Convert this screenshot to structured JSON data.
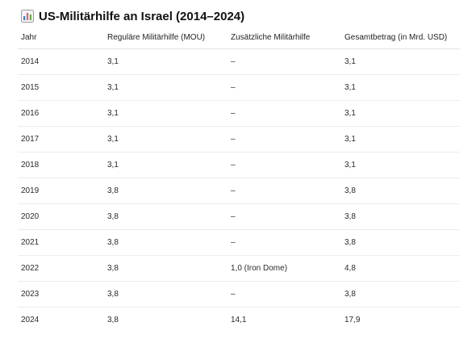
{
  "title": "US-Militärhilfe an Israel (2014–2024)",
  "title_icon": "bar-chart-icon",
  "table": {
    "headers": [
      "Jahr",
      "Reguläre Militärhilfe (MOU)",
      "Zusätzliche Militärhilfe",
      "Gesamtbetrag (in Mrd. USD)"
    ],
    "rows": [
      [
        "2014",
        "3,1",
        "–",
        "3,1"
      ],
      [
        "2015",
        "3,1",
        "–",
        "3,1"
      ],
      [
        "2016",
        "3,1",
        "–",
        "3,1"
      ],
      [
        "2017",
        "3,1",
        "–",
        "3,1"
      ],
      [
        "2018",
        "3,1",
        "–",
        "3,1"
      ],
      [
        "2019",
        "3,8",
        "–",
        "3,8"
      ],
      [
        "2020",
        "3,8",
        "–",
        "3,8"
      ],
      [
        "2021",
        "3,8",
        "–",
        "3,8"
      ],
      [
        "2022",
        "3,8",
        "1,0 (Iron Dome)",
        "4,8"
      ],
      [
        "2023",
        "3,8",
        "–",
        "3,8"
      ],
      [
        "2024",
        "3,8",
        "14,1",
        "17,9"
      ]
    ]
  }
}
